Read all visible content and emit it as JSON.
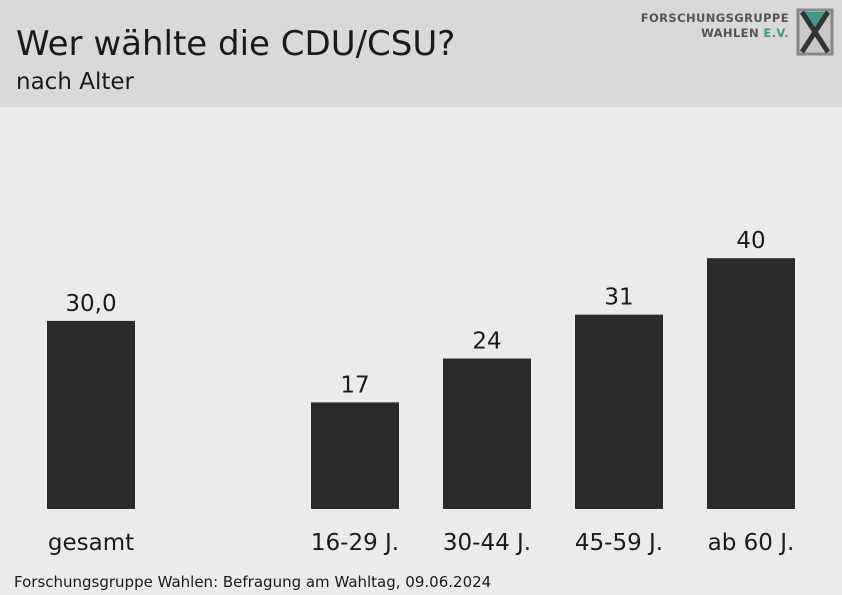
{
  "header": {
    "title": "Wer wählte die CDU/CSU?",
    "subtitle": "nach Alter",
    "logo_line1": "FORSCHUNGSGRUPPE",
    "logo_line2_main": "WAHLEN ",
    "logo_line2_accent": "E.V."
  },
  "footer": {
    "source": "Forschungsgruppe Wahlen: Befragung am Wahltag, 09.06.2024"
  },
  "colors": {
    "bar": "#2b2b2b",
    "header_bg": "#d9d9d9",
    "plot_bg": "#e9ecea",
    "logo_accent": "#3a9a8c"
  },
  "chart_data": {
    "type": "bar",
    "title": "Wer wählte die CDU/CSU?",
    "subtitle": "nach Alter",
    "categories": [
      "gesamt",
      "16-29 J.",
      "30-44 J.",
      "45-59 J.",
      "ab 60 J."
    ],
    "values": [
      30.0,
      17,
      24,
      31,
      40
    ],
    "value_labels": [
      "30,0",
      "17",
      "24",
      "31",
      "40"
    ],
    "ylim": [
      0,
      40
    ],
    "grid": false,
    "legend": "none",
    "y_axis_shown": false
  }
}
